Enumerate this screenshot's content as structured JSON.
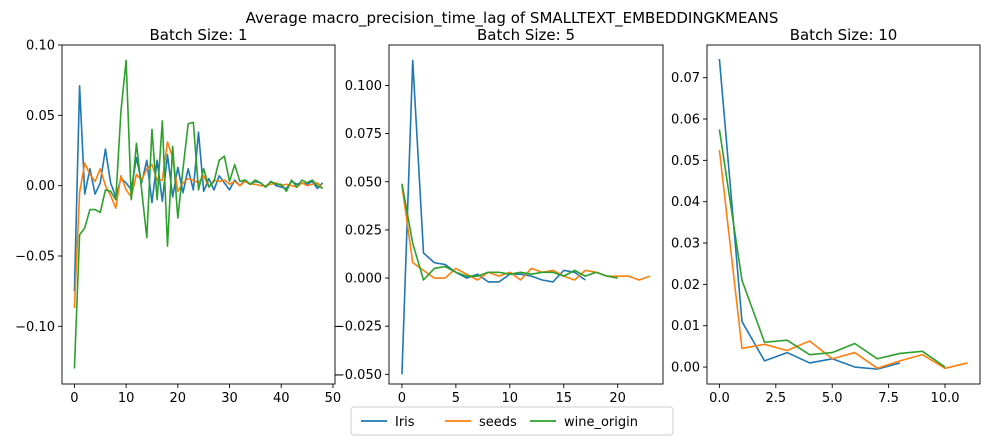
{
  "figure": {
    "suptitle": "Average macro_precision_time_lag of SMALLTEXT_EMBEDDINGKMEANS",
    "legend_position": "bottom-center"
  },
  "colors": {
    "Iris": "#1f77b4",
    "seeds": "#ff7f0e",
    "wine_origin": "#2ca02c"
  },
  "chart_data": [
    {
      "type": "line",
      "title": "Batch Size: 1",
      "xlim": [
        -2.4,
        50.4
      ],
      "ylim": [
        -0.141,
        0.1
      ],
      "xticks": [
        0,
        10,
        20,
        30,
        40,
        50
      ],
      "yticks": [
        -0.1,
        -0.05,
        0.0,
        0.05,
        0.1
      ],
      "ytick_labels": [
        "−0.10",
        "−0.05",
        "0.00",
        "0.05",
        "0.10"
      ],
      "series": [
        {
          "name": "Iris",
          "x": [
            0,
            1,
            2,
            3,
            4,
            5,
            6,
            7,
            8,
            9,
            10,
            11,
            12,
            13,
            14,
            15,
            16,
            17,
            18,
            19,
            20,
            21,
            22,
            23,
            24,
            25,
            26,
            27,
            28,
            29,
            30,
            31,
            32,
            33,
            34,
            35,
            36,
            37,
            38,
            39,
            40,
            41,
            42,
            43,
            44,
            45,
            46,
            47,
            48
          ],
          "y": [
            -0.075,
            0.071,
            -0.006,
            0.012,
            -0.006,
            0.002,
            0.026,
            0.002,
            -0.008,
            0.005,
            0.002,
            -0.003,
            0.02,
            0.002,
            0.018,
            -0.012,
            0.018,
            -0.011,
            0.022,
            -0.008,
            0.013,
            -0.005,
            0.012,
            -0.003,
            0.038,
            -0.004,
            0.005,
            -0.003,
            0.007,
            0.002,
            -0.003,
            0.004,
            0.0,
            0.004,
            0.001,
            0.003,
            0.002,
            -0.001,
            0.003,
            0.0,
            -0.001,
            -0.002,
            0.003,
            0.001,
            0.002,
            0.001,
            0.003,
            -0.002,
            0.002
          ]
        },
        {
          "name": "seeds",
          "x": [
            0,
            1,
            2,
            3,
            4,
            5,
            6,
            7,
            8,
            9,
            10,
            11,
            12,
            13,
            14,
            15,
            16,
            17,
            18,
            19,
            20,
            21,
            22,
            23,
            24,
            25,
            26,
            27,
            28,
            29,
            30,
            31,
            32,
            33,
            34,
            35,
            36,
            37,
            38,
            39,
            40,
            41,
            42,
            43,
            44,
            45,
            46,
            47,
            48
          ],
          "y": [
            -0.087,
            -0.005,
            0.016,
            0.008,
            0.003,
            0.012,
            0.0,
            -0.007,
            -0.016,
            0.007,
            -0.003,
            -0.008,
            0.008,
            0.004,
            0.012,
            0.015,
            0.004,
            0.004,
            0.031,
            0.02,
            -0.004,
            0.002,
            0.005,
            0.004,
            0.002,
            0.007,
            -0.001,
            0.004,
            0.003,
            0.004,
            0.001,
            0.003,
            0.0,
            0.003,
            0.001,
            0.001,
            0.0,
            0.0,
            0.001,
            0.002,
            0.0,
            0.001,
            0.0,
            -0.001,
            0.002,
            0.0,
            0.001,
            0.002,
            -0.002
          ]
        },
        {
          "name": "wine_origin",
          "x": [
            0,
            1,
            2,
            3,
            4,
            5,
            6,
            7,
            8,
            9,
            10,
            11,
            12,
            13,
            14,
            15,
            16,
            17,
            18,
            19,
            20,
            21,
            22,
            23,
            24,
            25,
            26,
            27,
            28,
            29,
            30,
            31,
            32,
            33,
            34,
            35,
            36,
            37,
            38,
            39,
            40,
            41,
            42,
            43,
            44,
            45,
            46,
            47,
            48
          ],
          "y": [
            -0.13,
            -0.035,
            -0.03,
            -0.017,
            -0.017,
            -0.019,
            -0.003,
            -0.004,
            -0.01,
            0.053,
            0.089,
            -0.01,
            0.03,
            -0.003,
            -0.037,
            0.04,
            -0.01,
            0.046,
            -0.043,
            0.028,
            -0.023,
            0.012,
            0.044,
            0.045,
            -0.003,
            0.012,
            -0.001,
            0.003,
            0.018,
            0.021,
            0.003,
            0.015,
            0.003,
            0.004,
            0.001,
            0.004,
            0.002,
            -0.001,
            0.003,
            0.001,
            0.001,
            -0.004,
            0.004,
            -0.001,
            0.004,
            0.002,
            0.004,
            0.0,
            -0.002
          ]
        }
      ]
    },
    {
      "type": "line",
      "title": "Batch Size: 5",
      "xlim": [
        -1.2,
        24.2
      ],
      "ylim": [
        -0.055,
        0.121
      ],
      "xticks": [
        0,
        5,
        10,
        15,
        20
      ],
      "yticks": [
        -0.05,
        -0.025,
        0.0,
        0.025,
        0.05,
        0.075,
        0.1
      ],
      "ytick_labels": [
        "−0.050",
        "−0.025",
        "0.000",
        "0.025",
        "0.050",
        "0.075",
        "0.100"
      ],
      "series": [
        {
          "name": "Iris",
          "x": [
            0,
            1,
            2,
            3,
            4,
            5,
            6,
            7,
            8,
            9,
            10,
            11,
            12,
            13,
            14,
            15,
            16,
            17
          ],
          "y": [
            -0.05,
            0.113,
            0.013,
            0.008,
            0.007,
            0.003,
            0.0,
            0.002,
            -0.002,
            -0.002,
            0.002,
            0.002,
            0.001,
            -0.001,
            -0.002,
            0.004,
            0.003,
            -0.001
          ]
        },
        {
          "name": "seeds",
          "x": [
            0,
            1,
            2,
            3,
            4,
            5,
            6,
            7,
            8,
            9,
            10,
            11,
            12,
            13,
            14,
            15,
            16,
            17,
            18,
            19,
            20,
            21,
            22,
            23
          ],
          "y": [
            0.048,
            0.008,
            0.004,
            0.0,
            0.0,
            0.005,
            0.002,
            -0.001,
            0.003,
            0.001,
            0.003,
            -0.001,
            0.005,
            0.003,
            0.004,
            0.001,
            -0.001,
            0.004,
            0.003,
            0.001,
            0.001,
            0.001,
            -0.001,
            0.001
          ]
        },
        {
          "name": "wine_origin",
          "x": [
            0,
            1,
            2,
            3,
            4,
            5,
            6,
            7,
            8,
            9,
            10,
            11,
            12,
            13,
            14,
            15,
            16,
            17,
            18,
            19,
            20
          ],
          "y": [
            0.049,
            0.018,
            -0.001,
            0.005,
            0.006,
            0.003,
            0.001,
            0.001,
            0.003,
            0.003,
            0.002,
            0.003,
            0.002,
            0.003,
            0.003,
            0.001,
            0.004,
            0.001,
            0.003,
            0.001,
            0.0
          ]
        }
      ]
    },
    {
      "type": "line",
      "title": "Batch Size: 10",
      "xlim": [
        -0.55,
        11.55
      ],
      "ylim": [
        -0.0041,
        0.0779
      ],
      "xticks": [
        0.0,
        2.5,
        5.0,
        7.5,
        10.0
      ],
      "xtick_labels": [
        "0.0",
        "2.5",
        "5.0",
        "7.5",
        "10.0"
      ],
      "yticks": [
        0.0,
        0.01,
        0.02,
        0.03,
        0.04,
        0.05,
        0.06,
        0.07
      ],
      "ytick_labels": [
        "0.00",
        "0.01",
        "0.02",
        "0.03",
        "0.04",
        "0.05",
        "0.06",
        "0.07"
      ],
      "series": [
        {
          "name": "Iris",
          "x": [
            0,
            1,
            2,
            3,
            4,
            5,
            6,
            7,
            8
          ],
          "y": [
            0.0745,
            0.011,
            0.0015,
            0.0035,
            0.001,
            0.002,
            0.0,
            -0.0005,
            0.001
          ]
        },
        {
          "name": "seeds",
          "x": [
            0,
            1,
            2,
            3,
            4,
            5,
            6,
            7,
            8,
            9,
            10,
            11
          ],
          "y": [
            0.0525,
            0.0045,
            0.0055,
            0.004,
            0.0063,
            0.002,
            0.0035,
            -0.0003,
            0.0015,
            0.003,
            -0.0003,
            0.001
          ]
        },
        {
          "name": "wine_origin",
          "x": [
            0,
            1,
            2,
            3,
            4,
            5,
            6,
            7,
            8,
            9,
            10
          ],
          "y": [
            0.0575,
            0.021,
            0.006,
            0.0065,
            0.003,
            0.0035,
            0.0057,
            0.002,
            0.0033,
            0.0038,
            0.0
          ]
        }
      ]
    }
  ],
  "legend": {
    "entries": [
      "Iris",
      "seeds",
      "wine_origin"
    ]
  }
}
